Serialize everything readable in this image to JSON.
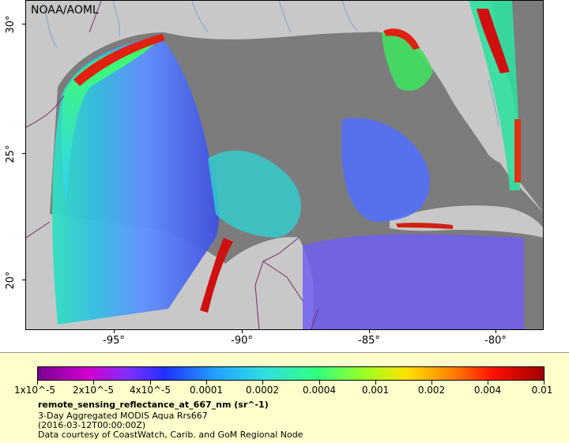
{
  "map": {
    "credit": "NOAA/AOML",
    "lat_labels": [
      "30°",
      "25°",
      "20°"
    ],
    "lon_labels": [
      "-95°",
      "-90°",
      "-85°",
      "-80°"
    ],
    "colors": {
      "land": "#c8c8c8",
      "no_data_water": "#7c7c7c",
      "political_border": "#7b2a6a",
      "river": "#7aa6d0"
    }
  },
  "legend": {
    "colorbar_labels": [
      "1x10^-5",
      "2x10^-5",
      "4x10^-5",
      "0.0001",
      "0.0002",
      "0.0004",
      "0.001",
      "0.002",
      "0.004",
      "0.01"
    ],
    "title": "remote_sensing_reflectance_at_667_nm (sr^-1)",
    "line1": "3-Day Aggregated MODIS Aqua Rrs667",
    "line2": "(2016-03-12T00:00:00Z)",
    "line3": "Data courtesy of CoastWatch, Carib. and GoM Regional Node",
    "background": "#ffffcc"
  }
}
